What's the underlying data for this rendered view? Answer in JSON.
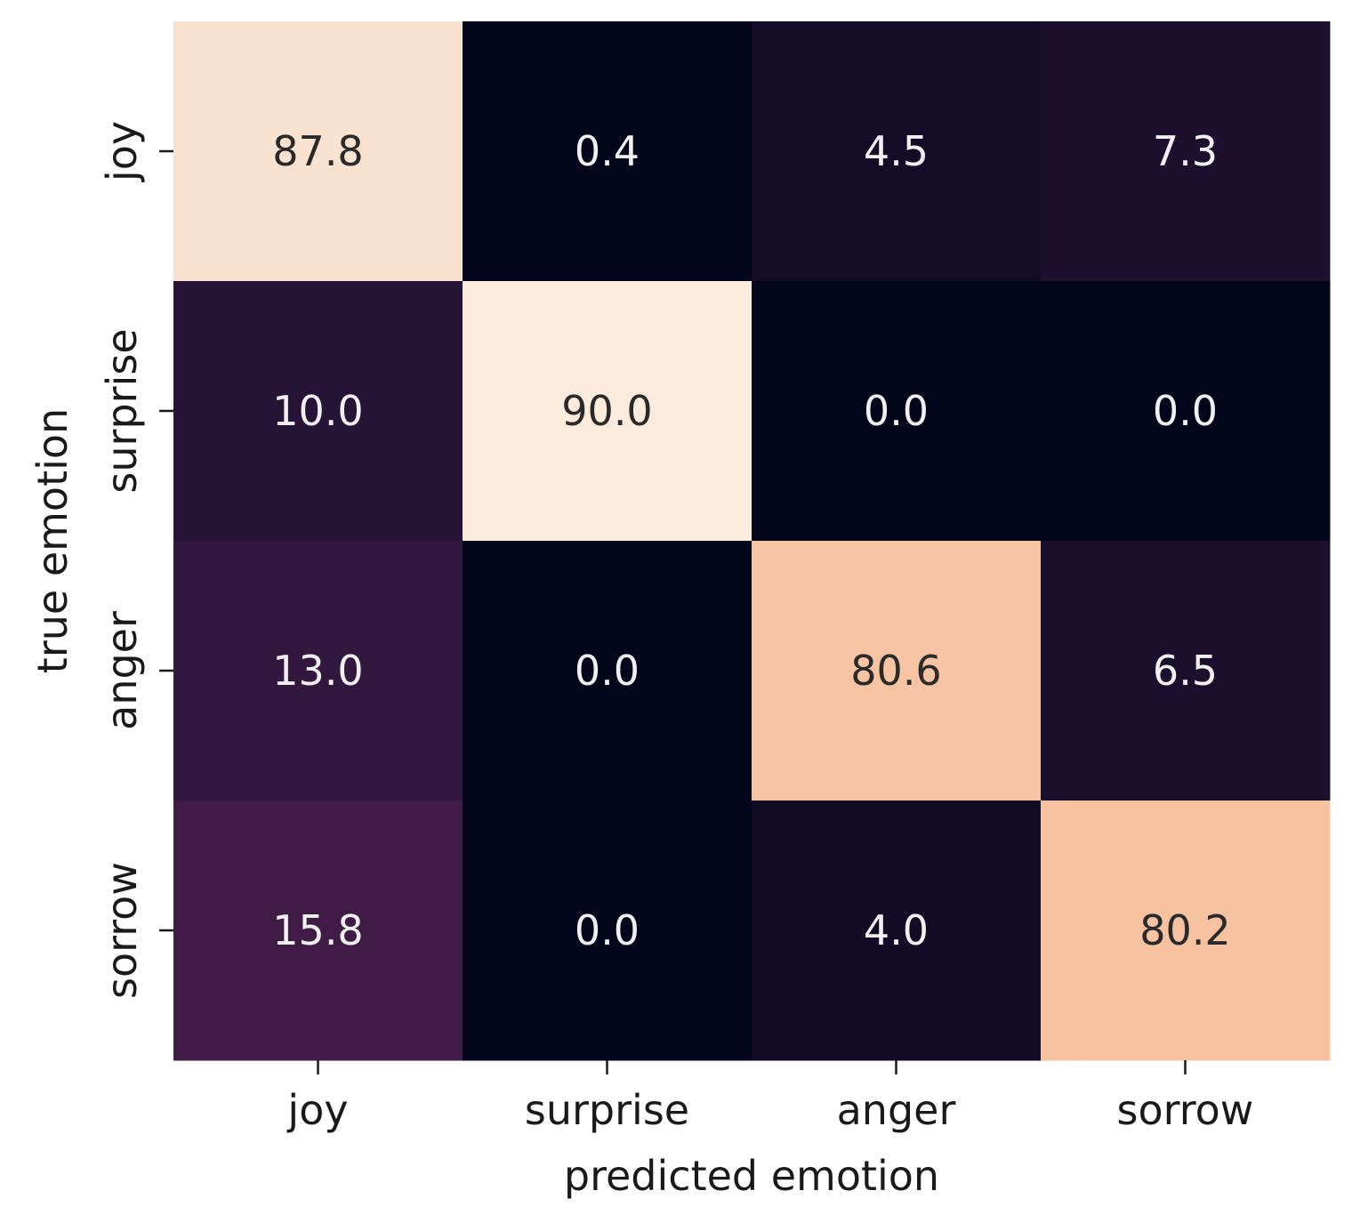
{
  "chart_data": {
    "type": "heatmap",
    "title": "",
    "xlabel": "predicted emotion",
    "ylabel": "true emotion",
    "x_categories": [
      "joy",
      "surprise",
      "anger",
      "sorrow"
    ],
    "y_categories": [
      "joy",
      "surprise",
      "anger",
      "sorrow"
    ],
    "values": [
      [
        87.8,
        0.4,
        4.5,
        7.3
      ],
      [
        10.0,
        90.0,
        0.0,
        0.0
      ],
      [
        13.0,
        0.0,
        80.6,
        6.5
      ],
      [
        15.8,
        0.0,
        4.0,
        80.2
      ]
    ],
    "value_labels": [
      [
        "87.8",
        "0.4",
        "4.5",
        "7.3"
      ],
      [
        "10.0",
        "90.0",
        "0.0",
        "0.0"
      ],
      [
        "13.0",
        "0.0",
        "80.6",
        "6.5"
      ],
      [
        "15.8",
        "0.0",
        "4.0",
        "80.2"
      ]
    ],
    "colormap": "rocket",
    "color_range": [
      0,
      90
    ],
    "colorbar": false,
    "grid": false,
    "legend": "none"
  }
}
